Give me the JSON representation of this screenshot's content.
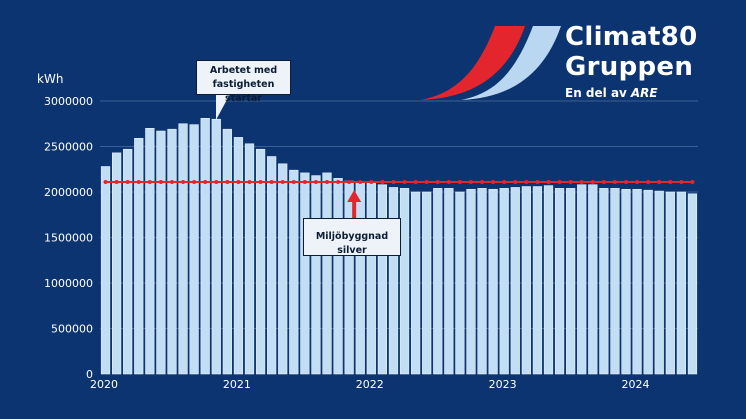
{
  "logo": {
    "line1": "Climat80",
    "line2": "Gruppen",
    "tagline": "En del av",
    "parent": "ARE",
    "colors": {
      "red": "#e3262e",
      "light_blue": "#b9d7f1"
    }
  },
  "annotations": {
    "start": "Arbetet med fastigheten startar",
    "silver": "Miljöbyggnad silver"
  },
  "colors": {
    "background": "#0b3470",
    "bar": "#c2def5",
    "bar_edge": "#e6f1fb",
    "threshold": "#e3262e",
    "grid": "#3d5f93"
  },
  "chart_data": {
    "type": "bar",
    "title": "",
    "xlabel": "",
    "ylabel": "kWh",
    "ylim": [
      0,
      3000000
    ],
    "yticks": [
      0,
      500000,
      1000000,
      1500000,
      2000000,
      2500000,
      3000000
    ],
    "ytick_labels": [
      "0",
      "500000",
      "1000000",
      "1500000",
      "2000000",
      "2500000",
      "3000000"
    ],
    "xtick_labels": [
      "2020",
      "2021",
      "2022",
      "2023",
      "2024"
    ],
    "xtick_positions_index": [
      0,
      12,
      24,
      36,
      48
    ],
    "grid": true,
    "legend": "none",
    "values": [
      2280000,
      2430000,
      2470000,
      2590000,
      2700000,
      2670000,
      2690000,
      2750000,
      2740000,
      2810000,
      2800000,
      2690000,
      2600000,
      2530000,
      2470000,
      2390000,
      2310000,
      2240000,
      2210000,
      2180000,
      2210000,
      2150000,
      2120000,
      2110000,
      2100000,
      2080000,
      2050000,
      2040000,
      2000000,
      2000000,
      2040000,
      2040000,
      2000000,
      2030000,
      2040000,
      2030000,
      2040000,
      2050000,
      2060000,
      2060000,
      2070000,
      2040000,
      2040000,
      2080000,
      2080000,
      2040000,
      2040000,
      2030000,
      2030000,
      2020000,
      2010000,
      2000000,
      2000000,
      1980000
    ],
    "threshold": {
      "value": 2110000,
      "label": "Miljöbyggnad silver"
    },
    "annotations": [
      {
        "text": "Arbetet med fastigheten startar",
        "bar_index": 10
      },
      {
        "text": "Miljöbyggnad silver",
        "bar_index": 22
      }
    ]
  }
}
